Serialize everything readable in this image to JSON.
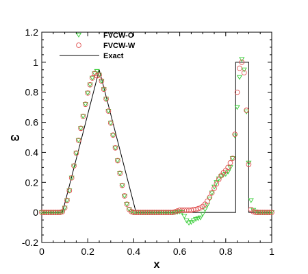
{
  "chart_data": {
    "type": "scatter",
    "title": "",
    "xlabel": "x",
    "ylabel": "ω",
    "xlim": [
      0,
      1
    ],
    "ylim": [
      -0.2,
      1.2
    ],
    "x_ticks": [
      {
        "value": 0,
        "label": "0"
      },
      {
        "value": 0.2,
        "label": "0.2"
      },
      {
        "value": 0.4,
        "label": "0.4"
      },
      {
        "value": 0.6,
        "label": "0.6"
      },
      {
        "value": 0.8,
        "label": "0.8"
      },
      {
        "value": 1,
        "label": "1"
      }
    ],
    "y_ticks": [
      {
        "value": -0.2,
        "label": "-0.2"
      },
      {
        "value": 0,
        "label": "0"
      },
      {
        "value": 0.2,
        "label": "0.2"
      },
      {
        "value": 0.4,
        "label": "0.4"
      },
      {
        "value": 0.6,
        "label": "0.6"
      },
      {
        "value": 0.8,
        "label": "0.8"
      },
      {
        "value": 1,
        "label": "1"
      },
      {
        "value": 1.2,
        "label": "1.2"
      }
    ],
    "grid": false,
    "legend_position": "top-left",
    "series": [
      {
        "name": "FVCW-O",
        "marker": "triangle-down",
        "color": "#33cc33",
        "x": [
          0.0,
          0.01,
          0.02,
          0.03,
          0.04,
          0.05,
          0.06,
          0.07,
          0.08,
          0.09,
          0.1,
          0.11,
          0.12,
          0.13,
          0.14,
          0.15,
          0.16,
          0.17,
          0.18,
          0.19,
          0.2,
          0.21,
          0.22,
          0.23,
          0.24,
          0.25,
          0.26,
          0.27,
          0.28,
          0.29,
          0.3,
          0.31,
          0.32,
          0.33,
          0.34,
          0.35,
          0.36,
          0.37,
          0.38,
          0.39,
          0.4,
          0.41,
          0.42,
          0.43,
          0.44,
          0.45,
          0.46,
          0.47,
          0.48,
          0.49,
          0.5,
          0.51,
          0.52,
          0.53,
          0.54,
          0.55,
          0.56,
          0.57,
          0.58,
          0.59,
          0.6,
          0.61,
          0.62,
          0.63,
          0.64,
          0.65,
          0.66,
          0.67,
          0.68,
          0.69,
          0.7,
          0.71,
          0.72,
          0.73,
          0.74,
          0.75,
          0.76,
          0.77,
          0.78,
          0.79,
          0.8,
          0.81,
          0.82,
          0.83,
          0.84,
          0.85,
          0.86,
          0.87,
          0.88,
          0.89,
          0.9,
          0.91,
          0.92,
          0.93,
          0.94,
          0.95,
          0.96,
          0.97,
          0.98,
          0.99,
          1.0
        ],
        "y": [
          0,
          0,
          0,
          0,
          0,
          0,
          0,
          0,
          0,
          0.005,
          0.03,
          0.08,
          0.145,
          0.23,
          0.31,
          0.395,
          0.48,
          0.56,
          0.64,
          0.72,
          0.795,
          0.85,
          0.895,
          0.925,
          0.94,
          0.915,
          0.875,
          0.82,
          0.755,
          0.675,
          0.595,
          0.515,
          0.43,
          0.345,
          0.26,
          0.18,
          0.11,
          0.055,
          0.02,
          0.005,
          0,
          0,
          0,
          0,
          0,
          0,
          0,
          0,
          0,
          0,
          0,
          0,
          0,
          0,
          0,
          0,
          0,
          0,
          0,
          0.003,
          0.005,
          0,
          -0.025,
          -0.055,
          -0.07,
          -0.065,
          -0.055,
          -0.045,
          -0.04,
          -0.035,
          -0.01,
          0.02,
          0.05,
          0.09,
          0.13,
          0.17,
          0.2,
          0.225,
          0.24,
          0.25,
          0.255,
          0.27,
          0.3,
          0.36,
          0.51,
          0.7,
          0.9,
          1.02,
          0.95,
          0.67,
          0.33,
          0.08,
          0.015,
          0.005,
          0,
          0,
          0,
          0,
          0,
          0,
          0
        ]
      },
      {
        "name": "FVCW-W",
        "marker": "circle",
        "color": "#e05050",
        "x": [
          0.0,
          0.01,
          0.02,
          0.03,
          0.04,
          0.05,
          0.06,
          0.07,
          0.08,
          0.09,
          0.1,
          0.11,
          0.12,
          0.13,
          0.14,
          0.15,
          0.16,
          0.17,
          0.18,
          0.19,
          0.2,
          0.21,
          0.22,
          0.23,
          0.24,
          0.25,
          0.26,
          0.27,
          0.28,
          0.29,
          0.3,
          0.31,
          0.32,
          0.33,
          0.34,
          0.35,
          0.36,
          0.37,
          0.38,
          0.39,
          0.4,
          0.41,
          0.42,
          0.43,
          0.44,
          0.45,
          0.46,
          0.47,
          0.48,
          0.49,
          0.5,
          0.51,
          0.52,
          0.53,
          0.54,
          0.55,
          0.56,
          0.57,
          0.58,
          0.59,
          0.6,
          0.61,
          0.62,
          0.63,
          0.64,
          0.65,
          0.66,
          0.67,
          0.68,
          0.69,
          0.7,
          0.71,
          0.72,
          0.73,
          0.74,
          0.75,
          0.76,
          0.77,
          0.78,
          0.79,
          0.8,
          0.81,
          0.82,
          0.83,
          0.84,
          0.85,
          0.86,
          0.87,
          0.88,
          0.89,
          0.9,
          0.91,
          0.92,
          0.93,
          0.94,
          0.95,
          0.96,
          0.97,
          0.98,
          0.99,
          1.0
        ],
        "y": [
          0,
          0,
          0,
          0,
          0,
          0,
          0,
          0,
          0,
          0.005,
          0.03,
          0.08,
          0.145,
          0.23,
          0.31,
          0.395,
          0.48,
          0.56,
          0.64,
          0.72,
          0.795,
          0.85,
          0.895,
          0.925,
          0.91,
          0.915,
          0.875,
          0.82,
          0.755,
          0.675,
          0.595,
          0.515,
          0.43,
          0.345,
          0.26,
          0.18,
          0.11,
          0.055,
          0.02,
          0.005,
          0,
          0,
          0,
          0,
          0,
          0,
          0,
          0,
          0,
          0,
          0,
          0,
          0,
          0,
          0,
          0,
          0,
          0,
          0.005,
          0.01,
          0.015,
          0.015,
          0.015,
          0.015,
          0.015,
          0.015,
          0.02,
          0.02,
          0.025,
          0.03,
          0.04,
          0.055,
          0.075,
          0.1,
          0.13,
          0.16,
          0.19,
          0.22,
          0.245,
          0.265,
          0.28,
          0.3,
          0.33,
          0.36,
          0.52,
          0.8,
          0.96,
          1.0,
          0.93,
          0.68,
          0.32,
          0.02,
          0.005,
          0,
          0,
          0,
          0,
          0,
          0,
          0,
          0
        ]
      },
      {
        "name": "Exact",
        "marker": "line",
        "color": "#000000",
        "x": [
          0.0,
          0.09,
          0.25,
          0.41,
          0.843,
          0.843,
          0.9,
          0.9,
          1.0
        ],
        "y": [
          0,
          0,
          0.95,
          0,
          0,
          1,
          1,
          0,
          0
        ]
      }
    ]
  }
}
